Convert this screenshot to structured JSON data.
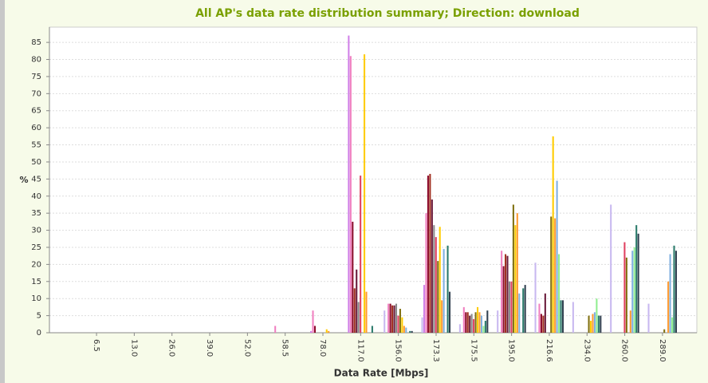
{
  "chart_data": {
    "type": "bar",
    "title": "All AP's data rate distribution summary; Direction: download",
    "x_label": "Data Rate [Mbps]",
    "y_label": "%",
    "categories": [
      "6.5",
      "13.0",
      "26.0",
      "39.0",
      "52.0",
      "58.5",
      "78.0",
      "117.0",
      "156.0",
      "173.3",
      "175.5",
      "195.0",
      "216.6",
      "234.0",
      "260.0",
      "289.0"
    ],
    "series": [
      {
        "color": "#c8b8f0",
        "values": [
          0,
          0,
          0,
          0,
          0,
          0,
          0,
          0,
          6.5,
          4.5,
          2.5,
          6.5,
          20.5,
          9,
          37.5,
          8.5
        ]
      },
      {
        "color": "#d080e8",
        "values": [
          0,
          0,
          0,
          0,
          0,
          0,
          0.5,
          87,
          0,
          14,
          0,
          0,
          0,
          0,
          0,
          0
        ]
      },
      {
        "color": "#f080c0",
        "values": [
          0,
          0,
          0,
          0,
          0,
          2,
          6.5,
          81,
          8.5,
          35,
          7.5,
          24,
          8.5,
          0,
          0,
          0
        ]
      },
      {
        "color": "#8b0a2a",
        "values": [
          0,
          0,
          0,
          0,
          0,
          0,
          2,
          32.5,
          8.5,
          46,
          6,
          19.5,
          5.5,
          0,
          0,
          0
        ]
      },
      {
        "color": "#a03020",
        "values": [
          0,
          0,
          0,
          0,
          0,
          0,
          0,
          13,
          8,
          46.5,
          6,
          23,
          5,
          0,
          0,
          0
        ]
      },
      {
        "color": "#6a1a3a",
        "values": [
          0,
          0,
          0,
          0,
          0,
          0,
          0,
          18.5,
          8,
          39,
          5,
          22.5,
          11.5,
          0,
          0,
          0
        ]
      },
      {
        "color": "#8a8a8a",
        "values": [
          0,
          0,
          0,
          0,
          0,
          0,
          0,
          9,
          8.5,
          31.5,
          5.5,
          15,
          0,
          0,
          0,
          0
        ]
      },
      {
        "color": "#e04060",
        "values": [
          0,
          0,
          0,
          0,
          0,
          0,
          0,
          46,
          5,
          28,
          4,
          15,
          0,
          0,
          26.5,
          0
        ]
      },
      {
        "color": "#807010",
        "values": [
          0,
          0,
          0,
          0,
          0,
          0,
          0,
          0,
          7,
          21,
          6,
          37.5,
          34,
          5,
          22,
          1
        ]
      },
      {
        "color": "#ffcc00",
        "values": [
          0,
          0,
          0,
          0,
          0,
          0,
          1,
          81.5,
          4.5,
          31,
          7.5,
          31.5,
          57.5,
          3.5,
          0,
          0
        ]
      },
      {
        "color": "#ff9a30",
        "values": [
          0,
          0,
          0,
          0,
          0,
          0,
          0.5,
          12,
          2,
          9.5,
          6,
          35,
          33.5,
          5.5,
          6.5,
          15
        ]
      },
      {
        "color": "#80b0e0",
        "values": [
          0,
          0,
          0,
          0,
          0,
          0,
          0,
          0,
          1.5,
          24.5,
          5,
          11.5,
          44.5,
          6,
          24,
          23
        ]
      },
      {
        "color": "#90ee90",
        "values": [
          0,
          0,
          0,
          0,
          0,
          0,
          0,
          0,
          0,
          0,
          2,
          0,
          23,
          10,
          25,
          4.5
        ]
      },
      {
        "color": "#2a7a6a",
        "values": [
          0,
          0,
          0,
          0,
          0,
          0,
          0,
          2,
          0.5,
          25.5,
          3.5,
          13,
          9.5,
          5,
          31.5,
          25.5
        ]
      },
      {
        "color": "#304050",
        "values": [
          0,
          0,
          0,
          0,
          0,
          0,
          0,
          0,
          0.5,
          12,
          6.5,
          14,
          9.5,
          5,
          29,
          24
        ]
      }
    ],
    "ylim": [
      0,
      89
    ],
    "yticks": [
      0,
      5,
      10,
      15,
      20,
      25,
      30,
      35,
      40,
      45,
      50,
      55,
      60,
      65,
      70,
      75,
      80,
      85
    ],
    "grid": true
  }
}
